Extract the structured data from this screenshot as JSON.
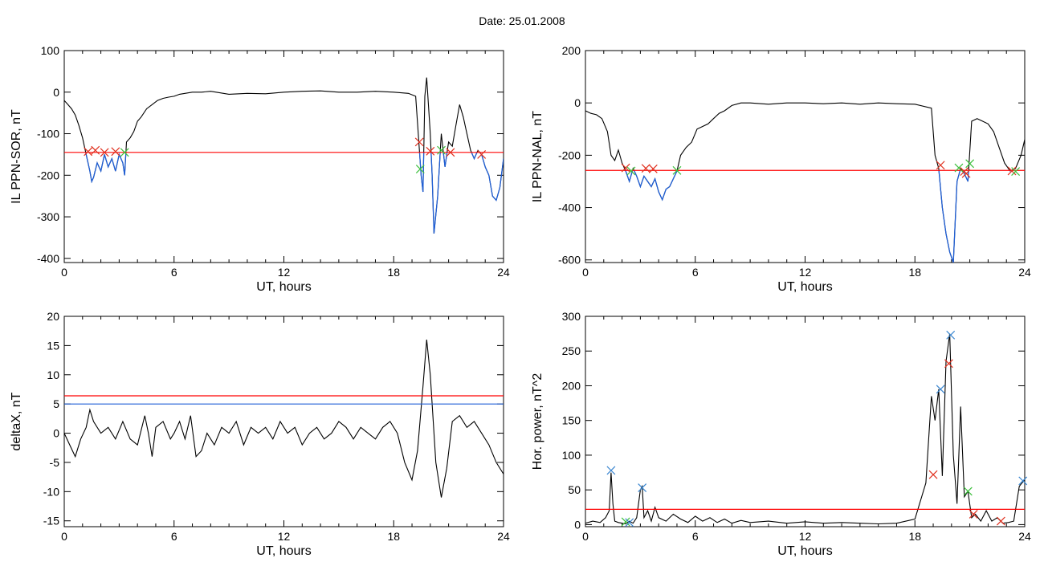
{
  "header": {
    "title": "Date:  25.01.2008"
  },
  "colors": {
    "signal": "#000000",
    "below": "#1f5fd6",
    "threshold_red": "#ff0000",
    "threshold_blue": "#1f5fd6",
    "marker_red": "#e0301e",
    "marker_green": "#3cc03c",
    "marker_blue": "#3a86d0"
  },
  "chart_data": [
    {
      "type": "line",
      "ylabel": "IL PPN-SOR, nT",
      "xlabel": "UT, hours",
      "xlim": [
        0,
        24
      ],
      "ylim": [
        -410,
        100
      ],
      "xticks": [
        "0",
        "6",
        "12",
        "18",
        "24"
      ],
      "yticks": [
        "100",
        "0",
        "-100",
        "-200",
        "-300",
        "-400"
      ],
      "ytick_values": [
        100,
        0,
        -100,
        -200,
        -300,
        -400
      ],
      "thresholds": [
        {
          "value": -145,
          "color": "red"
        }
      ],
      "series": [
        {
          "x": [
            0,
            0.2,
            0.4,
            0.6,
            0.8,
            1.0,
            1.2,
            1.4,
            1.5,
            1.6,
            1.8,
            2.0,
            2.2,
            2.4,
            2.6,
            2.8,
            3.0,
            3.2,
            3.3,
            3.4,
            3.6,
            3.8,
            4.0,
            4.2,
            4.5,
            4.8,
            5.1,
            5.4,
            5.7,
            6.0,
            6.3,
            6.6,
            7.0,
            7.5,
            8,
            9,
            10,
            11,
            12,
            13,
            14,
            15,
            16,
            17,
            18,
            18.8,
            19.2,
            19.5,
            19.6,
            19.7,
            19.8,
            20.0,
            20.1,
            20.2,
            20.4,
            20.6,
            20.8,
            20.9,
            21.0,
            21.2,
            21.4,
            21.6,
            21.8,
            22.0,
            22.2,
            22.4,
            22.6,
            22.8,
            23.0,
            23.2,
            23.4,
            23.6,
            23.8,
            24
          ],
          "values": [
            -20,
            -30,
            -40,
            -55,
            -80,
            -110,
            -150,
            -190,
            -215,
            -205,
            -170,
            -190,
            -150,
            -180,
            -160,
            -190,
            -150,
            -170,
            -200,
            -120,
            -110,
            -95,
            -70,
            -60,
            -40,
            -30,
            -20,
            -15,
            -12,
            -10,
            -5,
            -3,
            0,
            0,
            2,
            -5,
            -3,
            -4,
            0,
            2,
            3,
            0,
            0,
            2,
            0,
            -3,
            -10,
            -200,
            -240,
            -10,
            35,
            -100,
            -200,
            -340,
            -250,
            -100,
            -180,
            -150,
            -120,
            -130,
            -80,
            -30,
            -60,
            -100,
            -140,
            -160,
            -140,
            -150,
            -180,
            -200,
            -250,
            -260,
            -230,
            -160
          ]
        }
      ],
      "markers": [
        {
          "x": 1.3,
          "y": -143,
          "color": "red"
        },
        {
          "x": 1.7,
          "y": -140,
          "color": "red"
        },
        {
          "x": 2.2,
          "y": -145,
          "color": "red"
        },
        {
          "x": 2.8,
          "y": -143,
          "color": "red"
        },
        {
          "x": 3.3,
          "y": -145,
          "color": "green"
        },
        {
          "x": 19.4,
          "y": -120,
          "color": "red"
        },
        {
          "x": 19.45,
          "y": -185,
          "color": "green"
        },
        {
          "x": 20.0,
          "y": -142,
          "color": "red"
        },
        {
          "x": 20.6,
          "y": -140,
          "color": "green"
        },
        {
          "x": 21.1,
          "y": -145,
          "color": "red"
        },
        {
          "x": 22.8,
          "y": -150,
          "color": "red"
        }
      ]
    },
    {
      "type": "line",
      "ylabel": "IL PPN-NAL, nT",
      "xlabel": "UT, hours",
      "xlim": [
        0,
        24
      ],
      "ylim": [
        -610,
        200
      ],
      "xticks": [
        "0",
        "6",
        "12",
        "18",
        "24"
      ],
      "yticks": [
        "200",
        "0",
        "-200",
        "-400",
        "-600"
      ],
      "ytick_values": [
        200,
        0,
        -200,
        -400,
        -600
      ],
      "thresholds": [
        {
          "value": -258,
          "color": "red"
        }
      ],
      "series": [
        {
          "x": [
            0,
            0.3,
            0.6,
            0.9,
            1.2,
            1.4,
            1.6,
            1.8,
            2.0,
            2.2,
            2.4,
            2.6,
            2.8,
            3.0,
            3.2,
            3.4,
            3.6,
            3.8,
            4.0,
            4.2,
            4.4,
            4.6,
            4.8,
            5.0,
            5.2,
            5.5,
            5.8,
            6.1,
            6.4,
            6.7,
            7.0,
            7.3,
            7.6,
            8,
            8.5,
            9,
            10,
            11,
            12,
            13,
            14,
            15,
            16,
            17,
            18,
            18.9,
            19.1,
            19.3,
            19.5,
            19.7,
            19.9,
            20.1,
            20.3,
            20.5,
            20.7,
            20.9,
            21.1,
            21.4,
            21.7,
            22.0,
            22.3,
            22.6,
            22.9,
            23.2,
            23.5,
            23.8,
            24
          ],
          "values": [
            -30,
            -40,
            -45,
            -60,
            -110,
            -200,
            -220,
            -180,
            -230,
            -260,
            -300,
            -250,
            -280,
            -320,
            -280,
            -300,
            -320,
            -290,
            -340,
            -370,
            -330,
            -320,
            -290,
            -260,
            -200,
            -170,
            -150,
            -100,
            -90,
            -80,
            -60,
            -40,
            -30,
            -10,
            0,
            0,
            -5,
            0,
            0,
            -3,
            0,
            -5,
            0,
            -3,
            -5,
            -20,
            -200,
            -250,
            -400,
            -500,
            -570,
            -610,
            -300,
            -250,
            -270,
            -300,
            -70,
            -60,
            -70,
            -80,
            -110,
            -170,
            -230,
            -260,
            -250,
            -200,
            -140
          ]
        }
      ],
      "markers": [
        {
          "x": 2.2,
          "y": -248,
          "color": "red"
        },
        {
          "x": 2.5,
          "y": -260,
          "color": "green"
        },
        {
          "x": 3.3,
          "y": -250,
          "color": "red"
        },
        {
          "x": 3.7,
          "y": -252,
          "color": "red"
        },
        {
          "x": 5.0,
          "y": -258,
          "color": "green"
        },
        {
          "x": 19.4,
          "y": -238,
          "color": "red"
        },
        {
          "x": 20.4,
          "y": -248,
          "color": "green"
        },
        {
          "x": 20.7,
          "y": -262,
          "color": "red"
        },
        {
          "x": 20.8,
          "y": -270,
          "color": "red"
        },
        {
          "x": 21.0,
          "y": -232,
          "color": "green"
        },
        {
          "x": 23.3,
          "y": -260,
          "color": "red"
        },
        {
          "x": 23.5,
          "y": -262,
          "color": "green"
        }
      ]
    },
    {
      "type": "line",
      "ylabel": "deltaX, nT",
      "xlabel": "UT, hours",
      "xlim": [
        0,
        24
      ],
      "ylim": [
        -16,
        20
      ],
      "xticks": [
        "0",
        "6",
        "12",
        "18",
        "24"
      ],
      "yticks": [
        "20",
        "15",
        "10",
        "5",
        "0",
        "-5",
        "-10",
        "-15"
      ],
      "ytick_values": [
        20,
        15,
        10,
        5,
        0,
        -5,
        -10,
        -15
      ],
      "thresholds": [
        {
          "value": 6.4,
          "color": "red"
        },
        {
          "value": 5.0,
          "color": "blue"
        }
      ],
      "series": [
        {
          "x": [
            0,
            0.3,
            0.6,
            0.9,
            1.2,
            1.4,
            1.6,
            2.0,
            2.4,
            2.8,
            3.2,
            3.6,
            4.0,
            4.4,
            4.6,
            4.8,
            5.0,
            5.4,
            5.8,
            6.0,
            6.3,
            6.6,
            6.9,
            7.2,
            7.5,
            7.8,
            8.2,
            8.6,
            9.0,
            9.4,
            9.8,
            10.2,
            10.6,
            11.0,
            11.4,
            11.8,
            12.2,
            12.6,
            13.0,
            13.4,
            13.8,
            14.2,
            14.6,
            15.0,
            15.4,
            15.8,
            16.2,
            16.6,
            17.0,
            17.4,
            17.8,
            18.2,
            18.6,
            19.0,
            19.3,
            19.6,
            19.8,
            20.0,
            20.3,
            20.6,
            20.9,
            21.2,
            21.6,
            22.0,
            22.4,
            22.8,
            23.2,
            23.6,
            24
          ],
          "values": [
            0,
            -2,
            -4,
            -1,
            1,
            4,
            2,
            0,
            1,
            -1,
            2,
            -1,
            -2,
            3,
            0,
            -4,
            1,
            2,
            -1,
            0,
            2,
            -1,
            3,
            -4,
            -3,
            0,
            -2,
            1,
            0,
            2,
            -2,
            1,
            0,
            1,
            -1,
            2,
            0,
            1,
            -2,
            0,
            1,
            -1,
            0,
            2,
            1,
            -1,
            1,
            0,
            -1,
            1,
            2,
            0,
            -5,
            -8,
            -3,
            8,
            16,
            10,
            -5,
            -11,
            -6,
            2,
            3,
            1,
            2,
            0,
            -2,
            -5,
            -7
          ]
        }
      ],
      "markers": []
    },
    {
      "type": "line",
      "ylabel": "Hor. power, nT^2",
      "xlabel": "UT, hours",
      "xlim": [
        0,
        24
      ],
      "ylim": [
        -3,
        300
      ],
      "xticks": [
        "0",
        "6",
        "12",
        "18",
        "24"
      ],
      "yticks": [
        "300",
        "250",
        "200",
        "150",
        "100",
        "50",
        "0"
      ],
      "ytick_values": [
        300,
        250,
        200,
        150,
        100,
        50,
        0
      ],
      "thresholds": [
        {
          "value": 22,
          "color": "red"
        }
      ],
      "series": [
        {
          "x": [
            0,
            0.4,
            0.8,
            1.1,
            1.3,
            1.4,
            1.5,
            1.6,
            1.8,
            2.0,
            2.2,
            2.4,
            2.6,
            2.8,
            3.0,
            3.1,
            3.2,
            3.4,
            3.6,
            3.8,
            4.0,
            4.4,
            4.8,
            5.2,
            5.6,
            6.0,
            6.4,
            6.8,
            7.2,
            7.6,
            8.0,
            8.5,
            9,
            10,
            11,
            12,
            13,
            14,
            15,
            16,
            17,
            18,
            18.6,
            18.9,
            19.1,
            19.3,
            19.5,
            19.7,
            19.9,
            20.1,
            20.3,
            20.5,
            20.7,
            20.9,
            21.1,
            21.3,
            21.6,
            21.9,
            22.2,
            22.5,
            22.8,
            23.1,
            23.4,
            23.7,
            24
          ],
          "values": [
            2,
            5,
            3,
            10,
            20,
            75,
            30,
            5,
            3,
            2,
            1,
            5,
            2,
            10,
            50,
            55,
            10,
            20,
            5,
            25,
            10,
            5,
            15,
            8,
            3,
            12,
            5,
            10,
            3,
            8,
            2,
            6,
            3,
            5,
            2,
            4,
            2,
            3,
            2,
            1,
            2,
            8,
            60,
            185,
            150,
            195,
            70,
            235,
            275,
            100,
            30,
            170,
            40,
            48,
            10,
            15,
            5,
            20,
            5,
            10,
            2,
            3,
            5,
            55,
            65
          ]
        }
      ],
      "markers": [
        {
          "x": 1.4,
          "y": 78,
          "color": "blue"
        },
        {
          "x": 2.2,
          "y": 4,
          "color": "green"
        },
        {
          "x": 2.4,
          "y": 3,
          "color": "blue"
        },
        {
          "x": 3.1,
          "y": 53,
          "color": "blue"
        },
        {
          "x": 19.0,
          "y": 72,
          "color": "red"
        },
        {
          "x": 19.4,
          "y": 195,
          "color": "blue"
        },
        {
          "x": 19.85,
          "y": 232,
          "color": "red"
        },
        {
          "x": 19.95,
          "y": 273,
          "color": "blue"
        },
        {
          "x": 20.9,
          "y": 48,
          "color": "green"
        },
        {
          "x": 21.2,
          "y": 15,
          "color": "red"
        },
        {
          "x": 22.7,
          "y": 5,
          "color": "red"
        },
        {
          "x": 23.9,
          "y": 63,
          "color": "blue"
        }
      ]
    }
  ]
}
